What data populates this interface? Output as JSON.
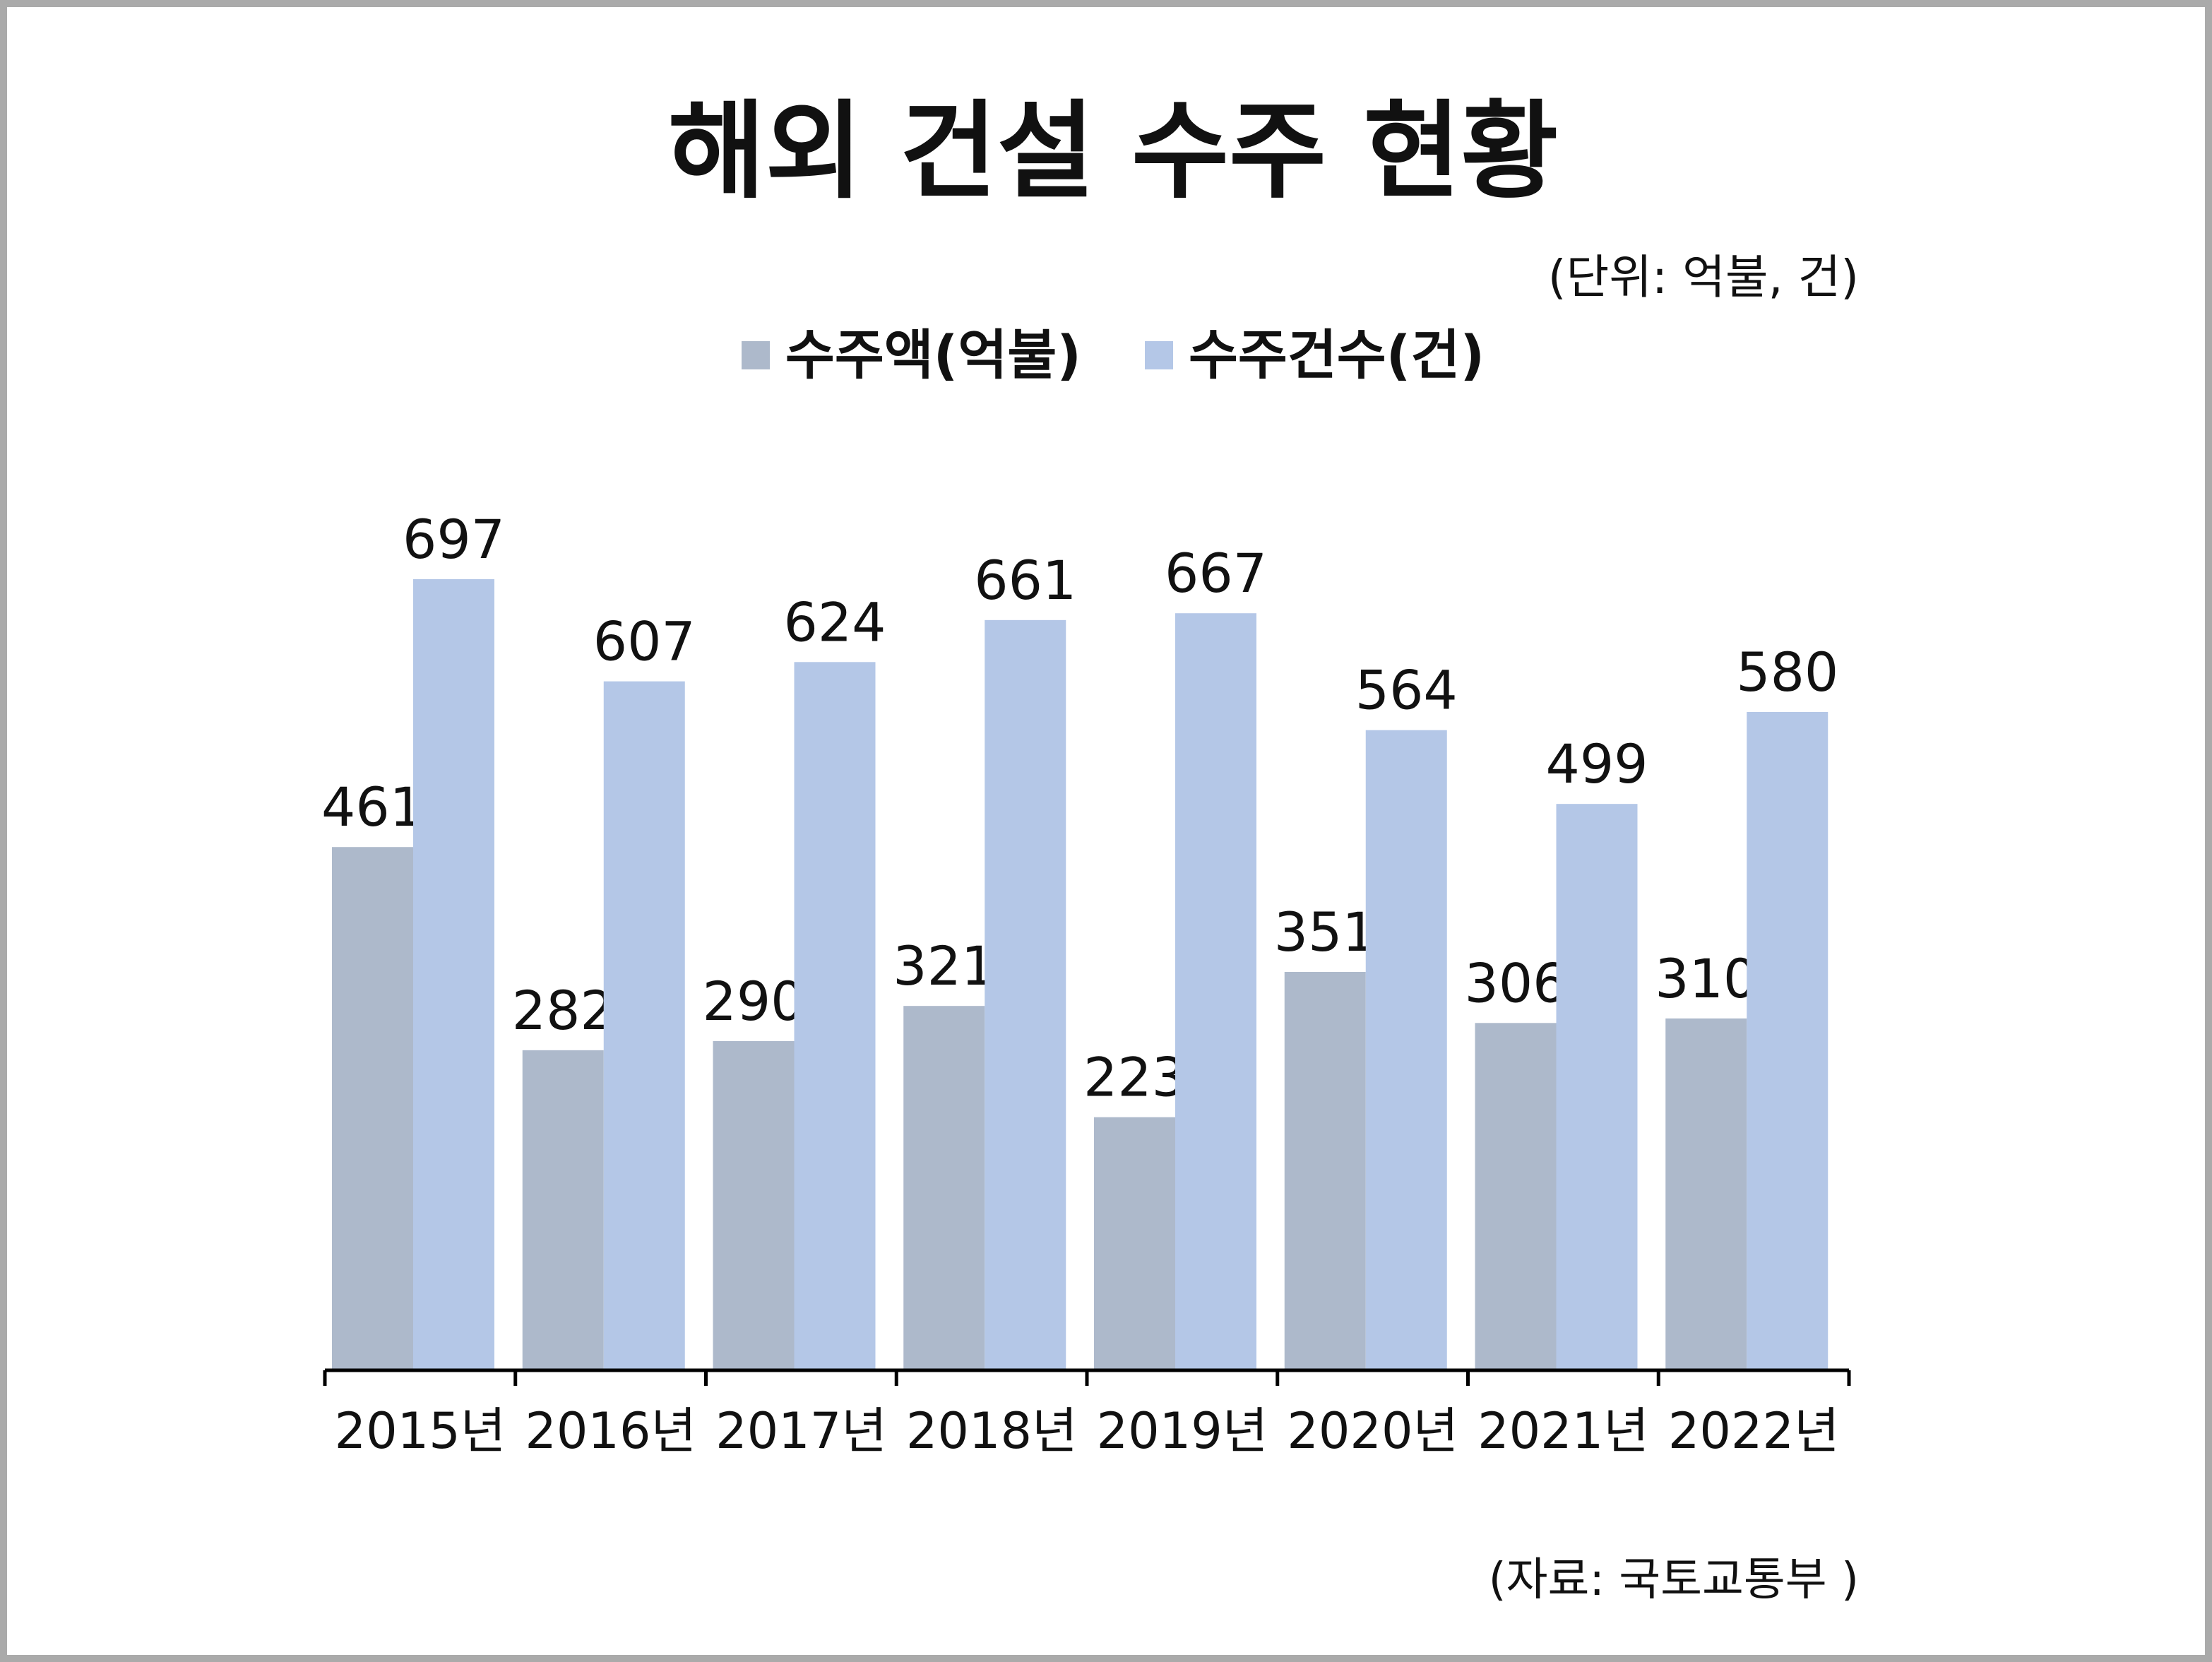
{
  "title": "해외 건설 수주 현황",
  "unit_note": "(단위: 억불, 건)",
  "source": "(자료: 국토교통부 )",
  "colors": {
    "amount": "#adb9cb",
    "count": "#b4c7e7",
    "axis": "#000000",
    "border": "#aaaaaa"
  },
  "chart_data": {
    "type": "bar",
    "title": "해외 건설 수주 현황",
    "categories": [
      "2015년",
      "2016년",
      "2017년",
      "2018년",
      "2019년",
      "2020년",
      "2021년",
      "2022년"
    ],
    "series": [
      {
        "name": "수주액(억불)",
        "values": [
          461,
          282,
          290,
          321,
          223,
          351,
          306,
          310
        ]
      },
      {
        "name": "수주건수(건)",
        "values": [
          697,
          607,
          624,
          661,
          667,
          564,
          499,
          580
        ]
      }
    ],
    "ylim": [
      0,
      700
    ],
    "grid": false,
    "legend": "top-center",
    "data_labels": true
  }
}
